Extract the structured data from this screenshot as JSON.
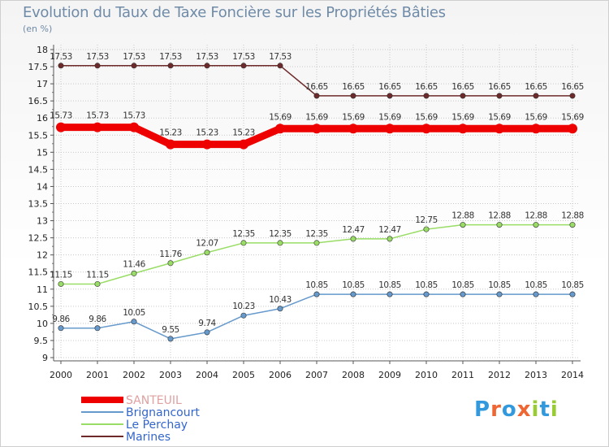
{
  "chart_data": {
    "type": "line",
    "title": "Evolution du Taux de Taxe Foncière sur les Propriétés Bâties",
    "unit": "(en %)",
    "xlabel": "",
    "ylabel": "(en %)",
    "ylim": [
      9,
      18
    ],
    "y_ticks": [
      "9",
      "9.5",
      "10",
      "10.5",
      "11",
      "11.5",
      "12",
      "12.5",
      "13",
      "13.5",
      "14",
      "14.5",
      "15",
      "15.5",
      "16",
      "16.5",
      "17",
      "17.5",
      "18"
    ],
    "x": [
      "2000",
      "2001",
      "2002",
      "2003",
      "2004",
      "2005",
      "2006",
      "2007",
      "2008",
      "2009",
      "2010",
      "2011",
      "2012",
      "2013",
      "2014"
    ],
    "series": [
      {
        "name": "Marines",
        "color": "#6e2a2a",
        "values": [
          17.53,
          17.53,
          17.53,
          17.53,
          17.53,
          17.53,
          17.53,
          16.65,
          16.65,
          16.65,
          16.65,
          16.65,
          16.65,
          16.65,
          16.65
        ],
        "labels": [
          "17.53",
          "17.53",
          "17.53",
          "17.53",
          "17.53",
          "17.53",
          "17.53",
          "16.65",
          "16.65",
          "16.65",
          "16.65",
          "16.65",
          "16.65",
          "16.65",
          "16.65"
        ]
      },
      {
        "name": "SANTEUIL",
        "color": "#ee0000",
        "values": [
          15.73,
          15.73,
          15.73,
          15.23,
          15.23,
          15.23,
          15.69,
          15.69,
          15.69,
          15.69,
          15.69,
          15.69,
          15.69,
          15.69,
          15.69
        ],
        "labels": [
          "15.73",
          "15.73",
          "15.73",
          "15.23",
          "15.23",
          "15.23",
          "15.69",
          "15.69",
          "15.69",
          "15.69",
          "15.69",
          "15.69",
          "15.69",
          "15.69",
          "15.69"
        ]
      },
      {
        "name": "Le Perchay",
        "color": "#99dd66",
        "values": [
          11.15,
          11.15,
          11.46,
          11.76,
          12.07,
          12.35,
          12.35,
          12.35,
          12.47,
          12.47,
          12.75,
          12.88,
          12.88,
          12.88,
          12.88
        ],
        "labels": [
          "11.15",
          "11.15",
          "11.46",
          "11.76",
          "12.07",
          "12.35",
          "12.35",
          "12.35",
          "12.47",
          "12.47",
          "12.75",
          "12.88",
          "12.88",
          "12.88",
          "12.88"
        ]
      },
      {
        "name": "Brignancourt",
        "color": "#6699cc",
        "values": [
          9.86,
          9.86,
          10.05,
          9.55,
          9.74,
          10.23,
          10.43,
          10.85,
          10.85,
          10.85,
          10.85,
          10.85,
          10.85,
          10.85,
          10.85
        ],
        "labels": [
          "9.86",
          "9.86",
          "10.05",
          "9.55",
          "9.74",
          "10.23",
          "10.43",
          "10.85",
          "10.85",
          "10.85",
          "10.85",
          "10.85",
          "10.85",
          "10.85",
          "10.85"
        ]
      }
    ],
    "legend": {
      "position": "bottom-left",
      "order": [
        "SANTEUIL",
        "Brignancourt",
        "Le Perchay",
        "Marines"
      ]
    }
  },
  "logo": {
    "text": "Proxiti",
    "letters": [
      "P",
      "r",
      "o",
      "x",
      "i",
      "t",
      "i"
    ],
    "colors": [
      "#3399dd",
      "#ee6633",
      "#3399dd",
      "#ee6633",
      "#99cc33",
      "#3399dd",
      "#99cc33"
    ]
  }
}
